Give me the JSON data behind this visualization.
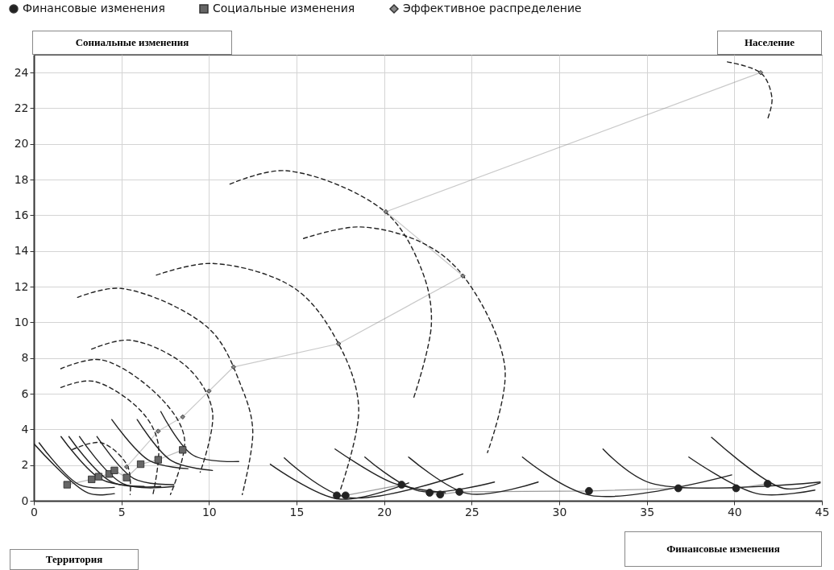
{
  "chart_data": {
    "type": "line",
    "xlabel": "Финансовые изменения",
    "ylabel": "Сониальные изменения",
    "annotations": [
      "Население",
      "Территория"
    ],
    "xlim": [
      0,
      45
    ],
    "ylim": [
      0,
      25
    ],
    "xticks": [
      0,
      5,
      10,
      15,
      20,
      25,
      30,
      35,
      40,
      45
    ],
    "yticks": [
      0,
      2,
      4,
      6,
      8,
      10,
      12,
      14,
      16,
      18,
      20,
      22,
      24
    ],
    "grid": true,
    "legend": "top",
    "series": [
      {
        "name": "Финансовые изменения",
        "color": "#222222",
        "marker": "circle",
        "x": [
          17.3,
          17.8,
          21,
          22.6,
          23.2,
          24.3,
          31.7,
          36.8,
          40.1,
          41.9
        ],
        "values": [
          0.3,
          0.3,
          0.9,
          0.45,
          0.35,
          0.5,
          0.55,
          0.7,
          0.7,
          0.95
        ]
      },
      {
        "name": "Социальные изменения",
        "color": "#666666",
        "marker": "square",
        "x": [
          1.9,
          3.3,
          3.7,
          4.3,
          4.6,
          5.3,
          6.1,
          7.1,
          8.5
        ],
        "values": [
          0.9,
          1.2,
          1.35,
          1.5,
          1.7,
          1.3,
          2.05,
          2.3,
          2.85
        ]
      },
      {
        "name": "Эффективное распределение",
        "color": "#888888",
        "marker": "diamond",
        "x": [
          5.3,
          7.1,
          8.5,
          10,
          11.4,
          17.4,
          24.5,
          20.1,
          41.5
        ],
        "values": [
          1.9,
          3.9,
          4.7,
          6.15,
          7.5,
          8.8,
          12.6,
          16.2,
          24
        ]
      },
      {
        "color": "#222222",
        "marker": "none",
        "line_style": "dashed",
        "x": [
          2.2,
          3.85,
          5.35,
          5.5
        ],
        "values": [
          2.87,
          3.25,
          1.95,
          0.35
        ]
      },
      {
        "color": "#222222",
        "marker": "none",
        "line_style": "dashed",
        "x": [
          1.54,
          3.4,
          6.15,
          7.1,
          6.8
        ],
        "values": [
          6.35,
          6.7,
          5.0,
          3.2,
          0.35
        ]
      },
      {
        "color": "#222222",
        "marker": "none",
        "line_style": "dashed",
        "x": [
          1.54,
          3.85,
          7.2,
          8.6,
          7.8
        ],
        "values": [
          7.4,
          7.9,
          5.8,
          3.5,
          0.35
        ]
      },
      {
        "color": "#222222",
        "marker": "none",
        "line_style": "dashed",
        "x": [
          3.3,
          5.5,
          8.8,
          10.2,
          9.5
        ],
        "values": [
          8.5,
          9.0,
          7.45,
          5.0,
          1.6
        ]
      },
      {
        "color": "#222222",
        "marker": "none",
        "line_style": "dashed",
        "x": [
          2.5,
          5,
          10,
          11.85,
          12.5,
          11.9
        ],
        "values": [
          11.4,
          11.9,
          9.65,
          6.4,
          3.95,
          0.35
        ]
      },
      {
        "color": "#222222",
        "marker": "none",
        "line_style": "dashed",
        "x": [
          7.0,
          10.2,
          14.9,
          17.4,
          18.55,
          17.5
        ],
        "values": [
          12.65,
          13.3,
          11.9,
          8.8,
          5.2,
          0.6
        ]
      },
      {
        "color": "#222222",
        "marker": "none",
        "line_style": "dashed",
        "x": [
          11.2,
          14.4,
          20.05,
          22.2,
          22.7,
          21.7
        ],
        "values": [
          17.75,
          18.5,
          16.2,
          12.8,
          9.9,
          5.8
        ]
      },
      {
        "color": "#222222",
        "marker": "none",
        "line_style": "dashed",
        "x": [
          15.4,
          18.6,
          22.3,
          24.6,
          26.9,
          25.9
        ],
        "values": [
          14.7,
          15.35,
          14.4,
          12.5,
          7.45,
          2.7
        ]
      },
      {
        "color": "#222222",
        "marker": "none",
        "line_style": "dashed",
        "x": [
          39.6,
          41.55,
          42.15,
          41.9
        ],
        "values": [
          24.6,
          23.95,
          22.55,
          21.4
        ]
      },
      {
        "color": "#222222",
        "marker": "none",
        "line_style": "solid",
        "x": [
          0,
          3.1,
          4.6
        ],
        "values": [
          3.2,
          0.43,
          0.4
        ]
      },
      {
        "color": "#222222",
        "marker": "none",
        "line_style": "solid",
        "x": [
          0.3,
          2.6,
          4.6
        ],
        "values": [
          3.25,
          0.9,
          0.75
        ]
      },
      {
        "color": "#222222",
        "marker": "none",
        "line_style": "solid",
        "x": [
          1.55,
          3.85,
          6.3
        ],
        "values": [
          3.6,
          1.2,
          0.8
        ]
      },
      {
        "color": "#222222",
        "marker": "none",
        "line_style": "solid",
        "x": [
          2.0,
          4.45,
          7.25
        ],
        "values": [
          3.6,
          1.05,
          0.8
        ]
      },
      {
        "color": "#222222",
        "marker": "none",
        "line_style": "solid",
        "x": [
          2.6,
          5.1,
          8.0
        ],
        "values": [
          3.6,
          0.95,
          0.8
        ]
      },
      {
        "color": "#222222",
        "marker": "none",
        "line_style": "solid",
        "x": [
          3.6,
          5.7,
          8.0
        ],
        "values": [
          3.6,
          1.25,
          0.9
        ]
      },
      {
        "color": "#222222",
        "marker": "none",
        "line_style": "solid",
        "x": [
          4.45,
          6.6,
          8.8
        ],
        "values": [
          4.55,
          2.25,
          1.8
        ]
      },
      {
        "color": "#222222",
        "marker": "none",
        "line_style": "solid",
        "x": [
          5.9,
          7.85,
          10.2
        ],
        "values": [
          4.55,
          2.25,
          1.7
        ]
      },
      {
        "color": "#222222",
        "marker": "none",
        "line_style": "solid",
        "x": [
          7.25,
          9.1,
          11.7
        ],
        "values": [
          5.0,
          2.55,
          2.2
        ]
      },
      {
        "color": "#222222",
        "marker": "none",
        "line_style": "solid",
        "x": [
          13.5,
          17.4,
          21.4
        ],
        "values": [
          2.05,
          0.1,
          1.0
        ]
      },
      {
        "color": "#222222",
        "marker": "none",
        "line_style": "solid",
        "x": [
          14.3,
          17.85,
          24.5
        ],
        "values": [
          2.4,
          0.2,
          1.5
        ]
      },
      {
        "color": "#222222",
        "marker": "none",
        "line_style": "solid",
        "x": [
          17.2,
          20.5,
          23.5
        ],
        "values": [
          2.9,
          1.0,
          0.45
        ]
      },
      {
        "color": "#222222",
        "marker": "none",
        "line_style": "solid",
        "x": [
          18.9,
          22.0,
          26.3
        ],
        "values": [
          2.45,
          0.55,
          1.05
        ]
      },
      {
        "color": "#222222",
        "marker": "none",
        "line_style": "solid",
        "x": [
          21.4,
          24.8,
          28.8
        ],
        "values": [
          2.45,
          0.4,
          1.05
        ]
      },
      {
        "color": "#222222",
        "marker": "none",
        "line_style": "solid",
        "x": [
          27.9,
          31.8,
          39.85
        ],
        "values": [
          2.45,
          0.3,
          1.45
        ]
      },
      {
        "color": "#222222",
        "marker": "none",
        "line_style": "solid",
        "x": [
          32.5,
          35.2,
          44.9
        ],
        "values": [
          2.9,
          1.0,
          1.05
        ]
      },
      {
        "color": "#222222",
        "marker": "none",
        "line_style": "solid",
        "x": [
          37.4,
          41.3,
          44.6
        ],
        "values": [
          2.45,
          0.4,
          0.6
        ]
      },
      {
        "color": "#222222",
        "marker": "none",
        "line_style": "solid",
        "x": [
          38.7,
          42.8,
          44.9
        ],
        "values": [
          3.55,
          0.7,
          1.0
        ]
      }
    ]
  }
}
